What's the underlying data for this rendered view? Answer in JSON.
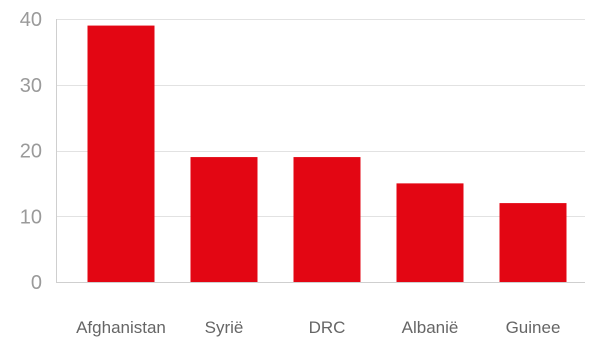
{
  "chart_data": {
    "type": "bar",
    "categories": [
      "Afghanistan",
      "Syrië",
      "DRC",
      "Albanië",
      "Guinee"
    ],
    "values": [
      39,
      19,
      19,
      15,
      12
    ],
    "title": "",
    "xlabel": "",
    "ylabel": "",
    "ylim": [
      0,
      40
    ],
    "yticks": [
      0,
      10,
      20,
      30,
      40
    ],
    "grid": true,
    "legend": "none",
    "bar_color": "#e30613"
  }
}
